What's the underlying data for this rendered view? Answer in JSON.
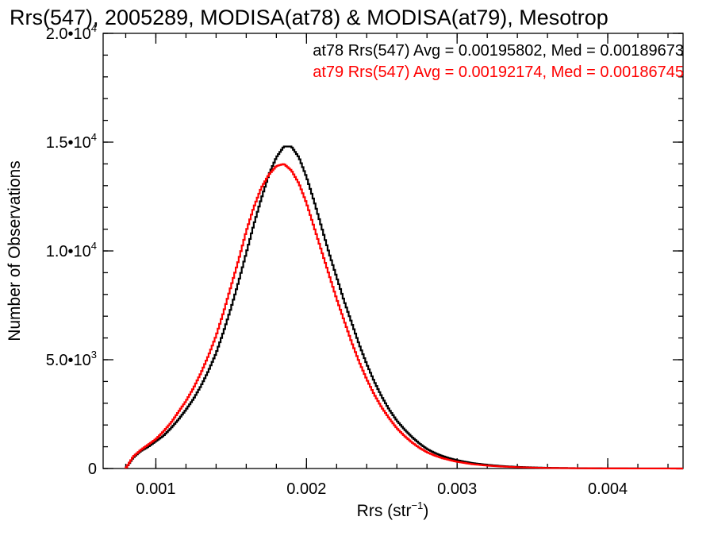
{
  "chart_data": {
    "type": "line",
    "title": "Rrs(547), 2005289, MODISA(at78) & MODISA(at79), Mesotrop",
    "xlabel": "Rrs (str",
    "xlabel_sup": "−1",
    "xlabel_close": ")",
    "ylabel": "Number of Observations",
    "xlim": [
      0.00065,
      0.0045
    ],
    "ylim": [
      0,
      20000
    ],
    "x_ticks": [
      {
        "value": 0.001,
        "label": "0.001"
      },
      {
        "value": 0.002,
        "label": "0.002"
      },
      {
        "value": 0.003,
        "label": "0.003"
      },
      {
        "value": 0.004,
        "label": "0.004"
      }
    ],
    "y_ticks": [
      {
        "value": 0,
        "mantissa": "0",
        "exponent": ""
      },
      {
        "value": 5000,
        "mantissa": "5.0•10",
        "exponent": "3"
      },
      {
        "value": 10000,
        "mantissa": "1.0•10",
        "exponent": "4"
      },
      {
        "value": 15000,
        "mantissa": "1.5•10",
        "exponent": "4"
      },
      {
        "value": 20000,
        "mantissa": "2.0•10",
        "exponent": "4"
      }
    ],
    "x_minor_step": 0.0002,
    "y_minor_step": 1000,
    "legend_position": "top-right",
    "series": [
      {
        "name": "at78",
        "color": "#000000",
        "legend_text": "at78 Rrs(547) Avg = 0.00195802, Med = 0.00189673",
        "points": [
          [
            0.0008,
            0
          ],
          [
            0.00085,
            500
          ],
          [
            0.0009,
            800
          ],
          [
            0.00095,
            1000
          ],
          [
            0.001,
            1250
          ],
          [
            0.00105,
            1500
          ],
          [
            0.0011,
            1850
          ],
          [
            0.00115,
            2250
          ],
          [
            0.0012,
            2700
          ],
          [
            0.00125,
            3200
          ],
          [
            0.0013,
            3800
          ],
          [
            0.00135,
            4500
          ],
          [
            0.0014,
            5300
          ],
          [
            0.00145,
            6300
          ],
          [
            0.0015,
            7400
          ],
          [
            0.00155,
            8600
          ],
          [
            0.0016,
            9900
          ],
          [
            0.00165,
            11200
          ],
          [
            0.0017,
            12400
          ],
          [
            0.00175,
            13500
          ],
          [
            0.0018,
            14300
          ],
          [
            0.00185,
            14800
          ],
          [
            0.0019,
            14800
          ],
          [
            0.00195,
            14300
          ],
          [
            0.002,
            13400
          ],
          [
            0.00205,
            12300
          ],
          [
            0.0021,
            11100
          ],
          [
            0.00215,
            9900
          ],
          [
            0.0022,
            8800
          ],
          [
            0.00225,
            7700
          ],
          [
            0.0023,
            6700
          ],
          [
            0.00235,
            5700
          ],
          [
            0.0024,
            4800
          ],
          [
            0.00245,
            4000
          ],
          [
            0.0025,
            3300
          ],
          [
            0.00255,
            2700
          ],
          [
            0.0026,
            2200
          ],
          [
            0.00265,
            1800
          ],
          [
            0.0027,
            1450
          ],
          [
            0.00275,
            1150
          ],
          [
            0.0028,
            900
          ],
          [
            0.00285,
            720
          ],
          [
            0.0029,
            580
          ],
          [
            0.00295,
            470
          ],
          [
            0.003,
            380
          ],
          [
            0.0031,
            250
          ],
          [
            0.0032,
            170
          ],
          [
            0.0033,
            110
          ],
          [
            0.0034,
            75
          ],
          [
            0.0035,
            50
          ],
          [
            0.0036,
            32
          ],
          [
            0.0038,
            15
          ],
          [
            0.004,
            6
          ],
          [
            0.0042,
            3
          ],
          [
            0.0045,
            1
          ]
        ]
      },
      {
        "name": "at79",
        "color": "#ff0000",
        "legend_text": "at79 Rrs(547) Avg = 0.00192174, Med = 0.00186745",
        "points": [
          [
            0.0008,
            0
          ],
          [
            0.00085,
            550
          ],
          [
            0.0009,
            850
          ],
          [
            0.00095,
            1100
          ],
          [
            0.001,
            1350
          ],
          [
            0.00105,
            1700
          ],
          [
            0.0011,
            2100
          ],
          [
            0.00115,
            2600
          ],
          [
            0.0012,
            3100
          ],
          [
            0.00125,
            3700
          ],
          [
            0.0013,
            4400
          ],
          [
            0.00135,
            5200
          ],
          [
            0.0014,
            6100
          ],
          [
            0.00145,
            7200
          ],
          [
            0.0015,
            8400
          ],
          [
            0.00155,
            9600
          ],
          [
            0.0016,
            10900
          ],
          [
            0.00165,
            12000
          ],
          [
            0.0017,
            12900
          ],
          [
            0.00175,
            13500
          ],
          [
            0.0018,
            13900
          ],
          [
            0.00185,
            14000
          ],
          [
            0.0019,
            13700
          ],
          [
            0.00195,
            13100
          ],
          [
            0.002,
            12200
          ],
          [
            0.00205,
            11100
          ],
          [
            0.0021,
            10000
          ],
          [
            0.00215,
            8900
          ],
          [
            0.0022,
            7800
          ],
          [
            0.00225,
            6800
          ],
          [
            0.0023,
            5800
          ],
          [
            0.00235,
            4900
          ],
          [
            0.0024,
            4100
          ],
          [
            0.00245,
            3400
          ],
          [
            0.0025,
            2800
          ],
          [
            0.00255,
            2300
          ],
          [
            0.0026,
            1850
          ],
          [
            0.00265,
            1500
          ],
          [
            0.0027,
            1200
          ],
          [
            0.00275,
            950
          ],
          [
            0.0028,
            750
          ],
          [
            0.00285,
            600
          ],
          [
            0.0029,
            480
          ],
          [
            0.00295,
            390
          ],
          [
            0.003,
            310
          ],
          [
            0.0031,
            200
          ],
          [
            0.0032,
            135
          ],
          [
            0.0033,
            90
          ],
          [
            0.0034,
            60
          ],
          [
            0.0035,
            40
          ],
          [
            0.0036,
            26
          ],
          [
            0.0038,
            12
          ],
          [
            0.004,
            5
          ],
          [
            0.0042,
            2
          ],
          [
            0.0045,
            1
          ]
        ]
      }
    ]
  }
}
